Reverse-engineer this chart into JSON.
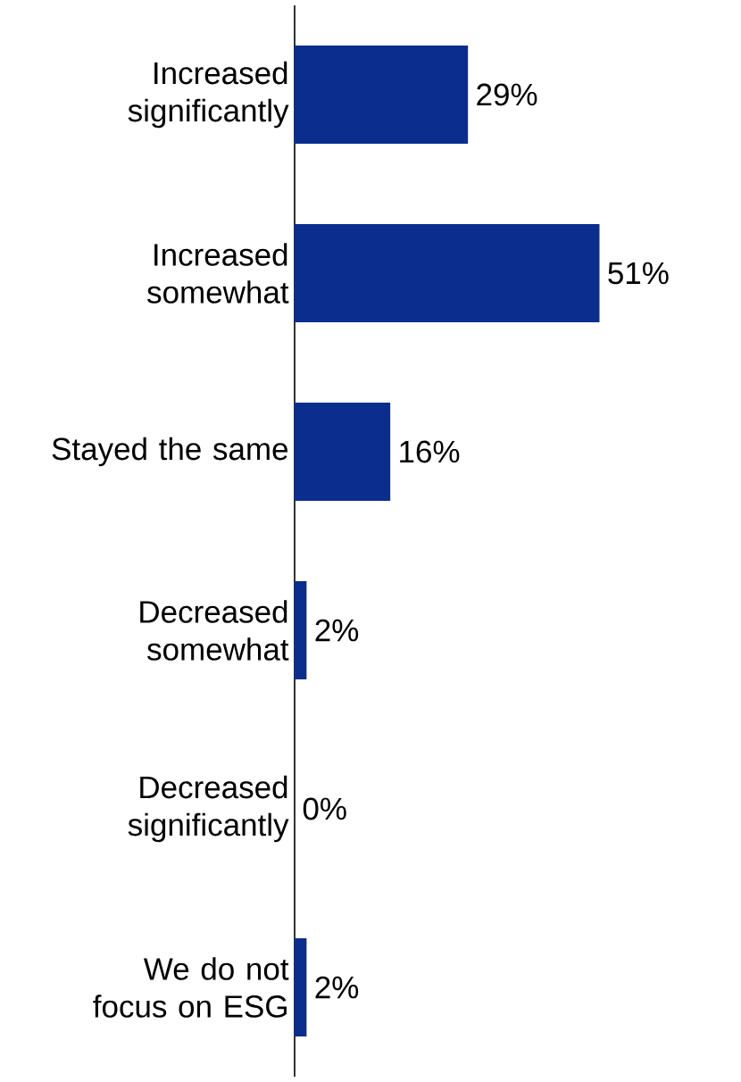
{
  "chart_data": {
    "type": "bar",
    "orientation": "horizontal",
    "categories": [
      "Increased significantly",
      "Increased somewhat",
      "Stayed the same",
      "Decreased somewhat",
      "Decreased significantly",
      "We do not focus on ESG"
    ],
    "values": [
      29,
      51,
      16,
      2,
      0,
      2
    ],
    "value_labels": [
      "29%",
      "51%",
      "16%",
      "2%",
      "0%",
      "2%"
    ],
    "color": "#0b2d8e"
  }
}
